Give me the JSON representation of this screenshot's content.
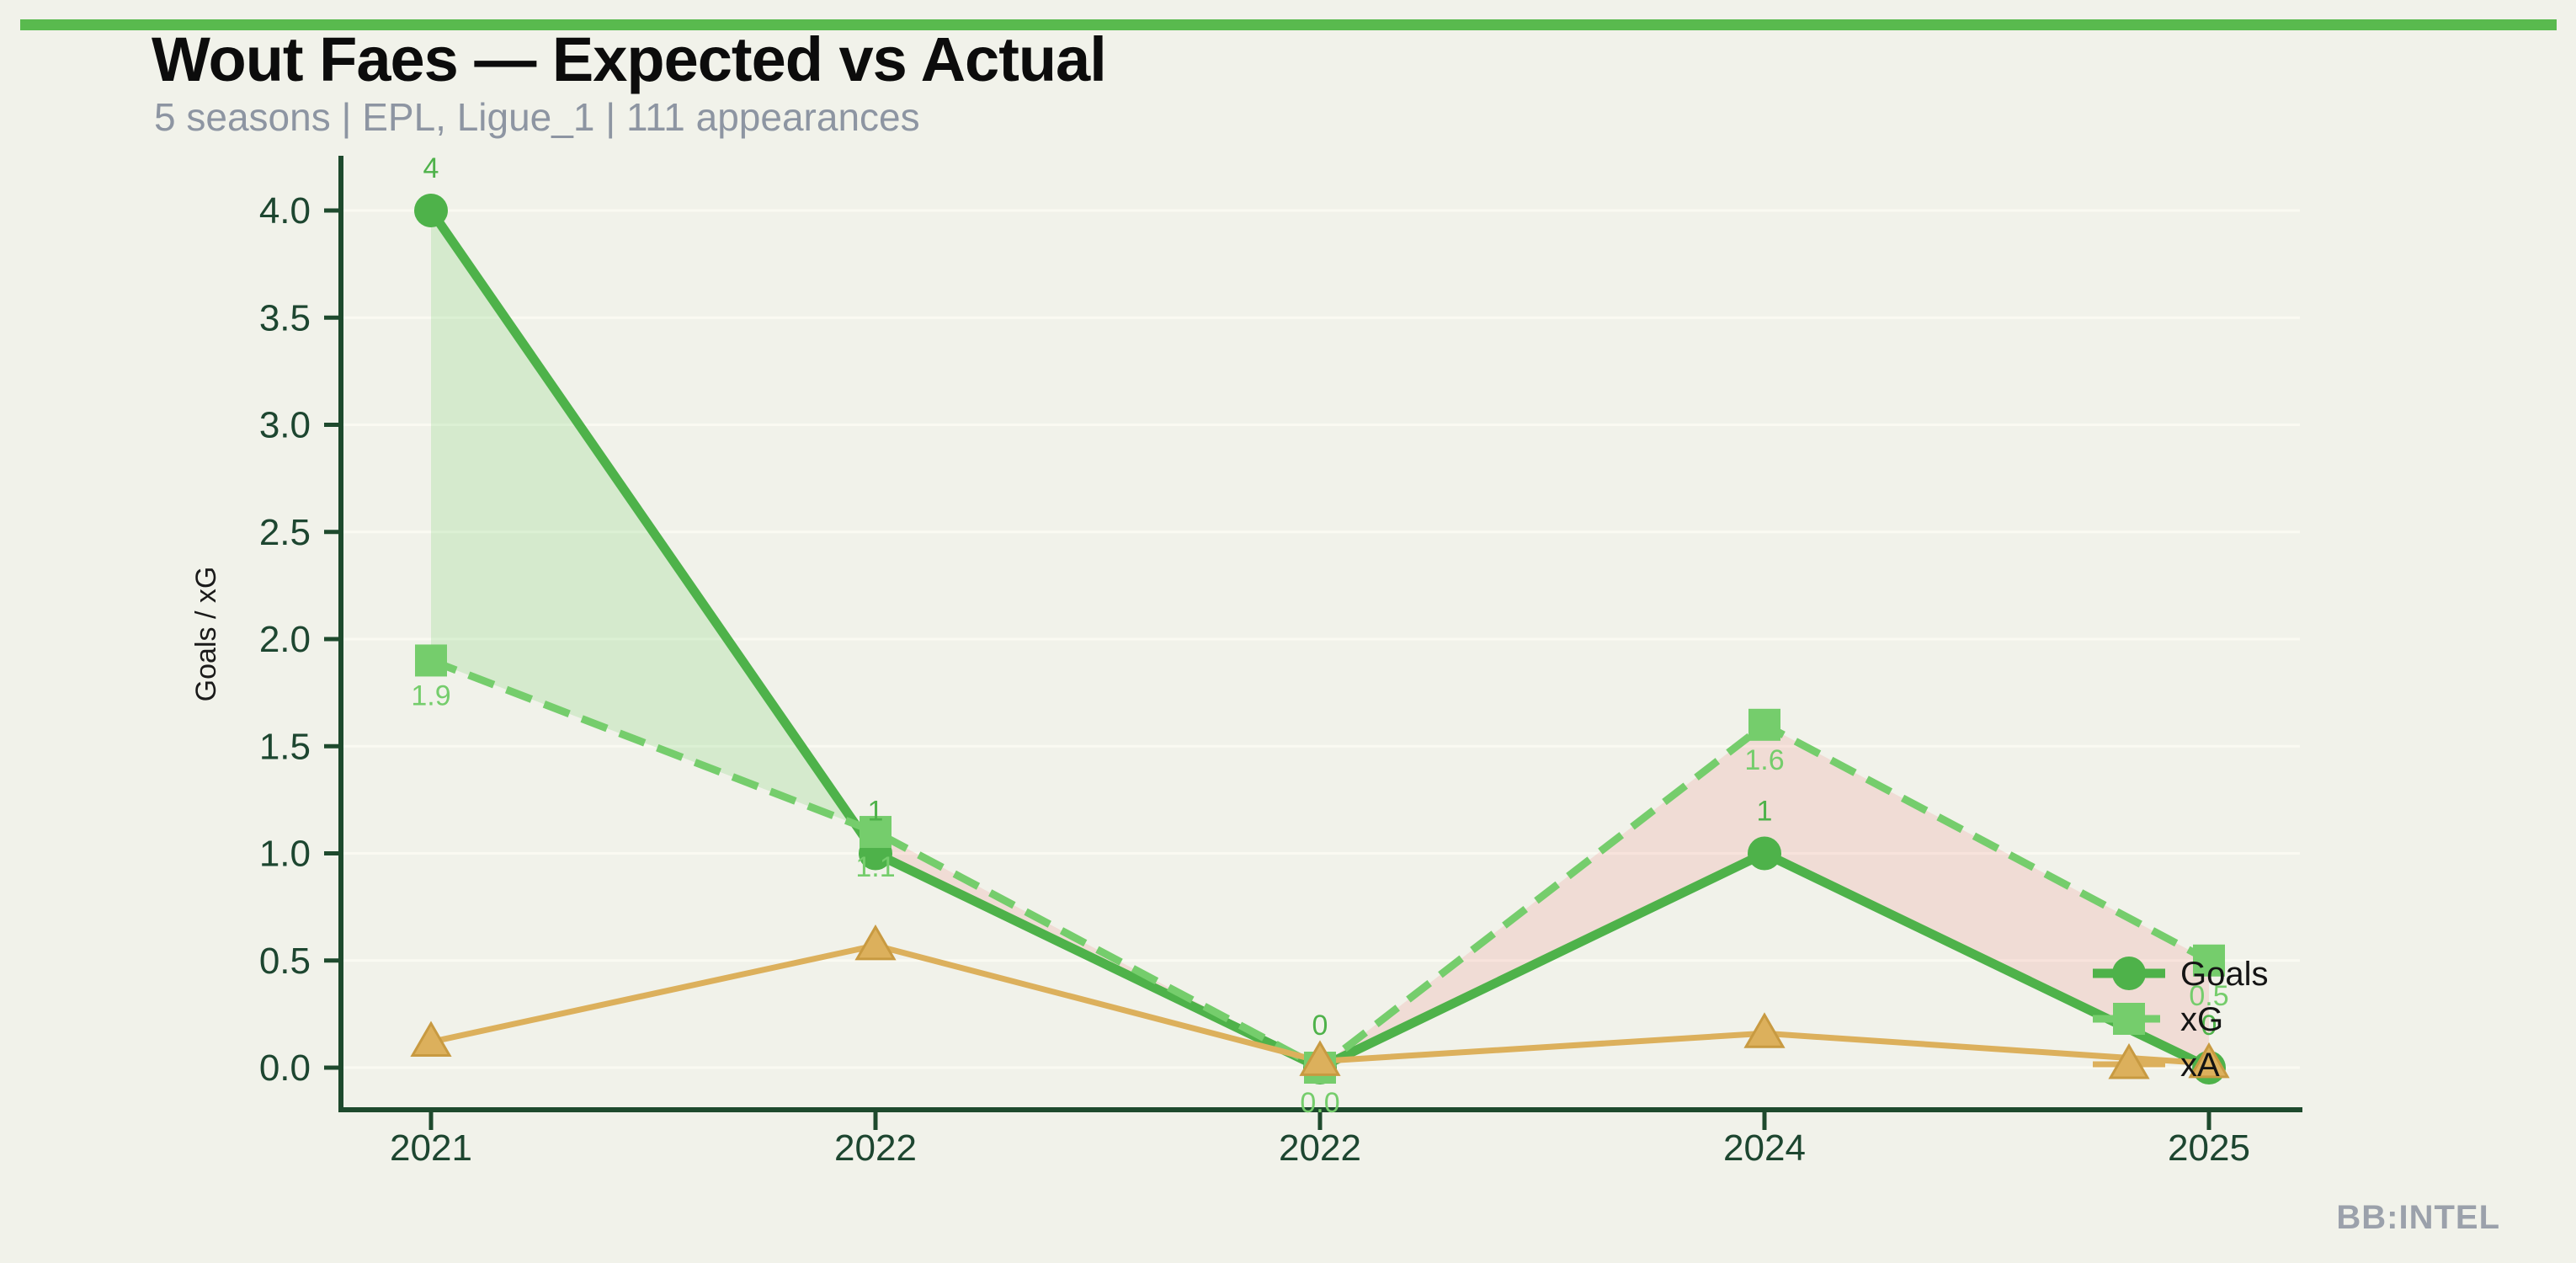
{
  "page": {
    "background_color": "#f1f2ea",
    "accent_bar_color": "#59ba4e"
  },
  "header": {
    "title": "Wout Faes — Expected vs Actual",
    "subtitle": "5 seasons | EPL, Ligue_1 | 111 appearances"
  },
  "watermark": "BB:INTEL",
  "chart_data": {
    "type": "line",
    "title": "Wout Faes — Expected vs Actual",
    "subtitle": "5 seasons | EPL, Ligue_1 | 111 appearances",
    "categories": [
      "2021",
      "2022",
      "2022",
      "2024",
      "2025"
    ],
    "ylabel": "Goals / xG",
    "ylim": [
      0,
      4
    ],
    "yticks": [
      "0.0",
      "0.5",
      "1.0",
      "1.5",
      "2.0",
      "2.5",
      "3.0",
      "3.5",
      "4.0"
    ],
    "grid": true,
    "legend_position": "right-inside",
    "axis_color": "#1e4a2d",
    "tick_label_color": "#1d4630",
    "legend_text_color": "#141414",
    "series": [
      {
        "name": "Goals",
        "values": [
          4,
          1,
          0,
          1,
          0
        ],
        "point_labels": [
          "4",
          "1",
          "0",
          "1",
          "0"
        ],
        "color": "#4eb24a",
        "marker": "circle",
        "line_style": "solid"
      },
      {
        "name": "xG",
        "values": [
          1.9,
          1.1,
          0.0,
          1.6,
          0.5
        ],
        "point_labels": [
          "1.9",
          "1.1",
          "0.0",
          "1.6",
          "0.5"
        ],
        "color": "#75cd6c",
        "marker": "square",
        "line_style": "dashed"
      },
      {
        "name": "xA",
        "values": [
          0.12,
          0.57,
          0.03,
          0.16,
          0.02
        ],
        "point_labels": [],
        "color": "#dcb05c",
        "marker": "triangle",
        "marker_edge_color": "#c89a41",
        "line_style": "solid"
      }
    ],
    "fill_between": {
      "series_a": "Goals",
      "series_b": "xG",
      "goals_above_color": "rgba(116,205,107,0.22)",
      "xg_above_color": "rgba(240,110,115,0.17)"
    }
  }
}
